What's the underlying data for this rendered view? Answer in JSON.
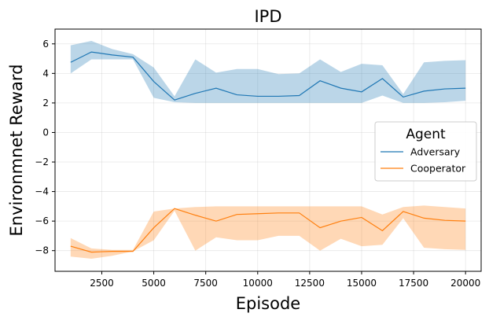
{
  "chart_data": {
    "type": "line",
    "title": "IPD",
    "xlabel": "Episode",
    "ylabel": "Environmnet Reward",
    "xlim": [
      250,
      20750
    ],
    "ylim": [
      -9.4,
      7.0
    ],
    "xticks": [
      2500,
      5000,
      7500,
      10000,
      12500,
      15000,
      17500,
      20000
    ],
    "xtick_labels": [
      "2500",
      "5000",
      "7500",
      "10000",
      "12500",
      "15000",
      "17500",
      "20000"
    ],
    "yticks": [
      6,
      4,
      2,
      0,
      -2,
      -4,
      -6,
      -8
    ],
    "ytick_labels": [
      "6",
      "4",
      "2",
      "0",
      "−2",
      "−4",
      "−6",
      "−8"
    ],
    "grid": true,
    "legend": {
      "title": "Agent",
      "position": "center-right"
    },
    "x": [
      1000,
      2000,
      3000,
      4000,
      5000,
      6000,
      7000,
      8000,
      9000,
      10000,
      11000,
      12000,
      13000,
      14000,
      15000,
      16000,
      17000,
      18000,
      19000,
      20000
    ],
    "series": [
      {
        "name": "Adversary",
        "color": "#1f77b4",
        "fill_color": "#1f77b4",
        "values": [
          4.75,
          5.45,
          5.25,
          5.1,
          3.45,
          2.2,
          2.65,
          3.0,
          2.55,
          2.45,
          2.45,
          2.5,
          3.5,
          3.0,
          2.75,
          3.65,
          2.4,
          2.8,
          2.95,
          3.0
        ],
        "lower": [
          4.0,
          4.95,
          4.95,
          4.95,
          2.35,
          2.05,
          2.0,
          2.0,
          2.0,
          2.0,
          2.0,
          2.0,
          2.0,
          2.0,
          2.0,
          2.5,
          2.0,
          2.0,
          2.05,
          2.15
        ],
        "upper": [
          5.9,
          6.2,
          5.65,
          5.3,
          4.4,
          2.45,
          4.95,
          4.05,
          4.3,
          4.3,
          3.95,
          4.0,
          4.95,
          4.1,
          4.65,
          4.55,
          2.6,
          4.75,
          4.85,
          4.9
        ]
      },
      {
        "name": "Cooperator",
        "color": "#ff7f0e",
        "fill_color": "#ff7f0e",
        "values": [
          -7.7,
          -8.1,
          -8.05,
          -8.05,
          -6.45,
          -5.15,
          -5.6,
          -6.0,
          -5.55,
          -5.5,
          -5.45,
          -5.45,
          -6.45,
          -6.0,
          -5.75,
          -6.65,
          -5.35,
          -5.8,
          -5.95,
          -6.0
        ],
        "lower": [
          -8.4,
          -8.55,
          -8.35,
          -8.05,
          -7.3,
          -5.3,
          -8.0,
          -7.1,
          -7.3,
          -7.3,
          -7.0,
          -7.0,
          -8.0,
          -7.2,
          -7.7,
          -7.6,
          -5.8,
          -7.8,
          -7.9,
          -7.95
        ],
        "upper": [
          -7.15,
          -7.85,
          -7.95,
          -7.95,
          -5.35,
          -5.15,
          -5.05,
          -5.0,
          -5.0,
          -5.0,
          -5.0,
          -5.0,
          -5.0,
          -5.0,
          -5.0,
          -5.55,
          -5.05,
          -4.95,
          -5.05,
          -5.15
        ]
      }
    ]
  }
}
